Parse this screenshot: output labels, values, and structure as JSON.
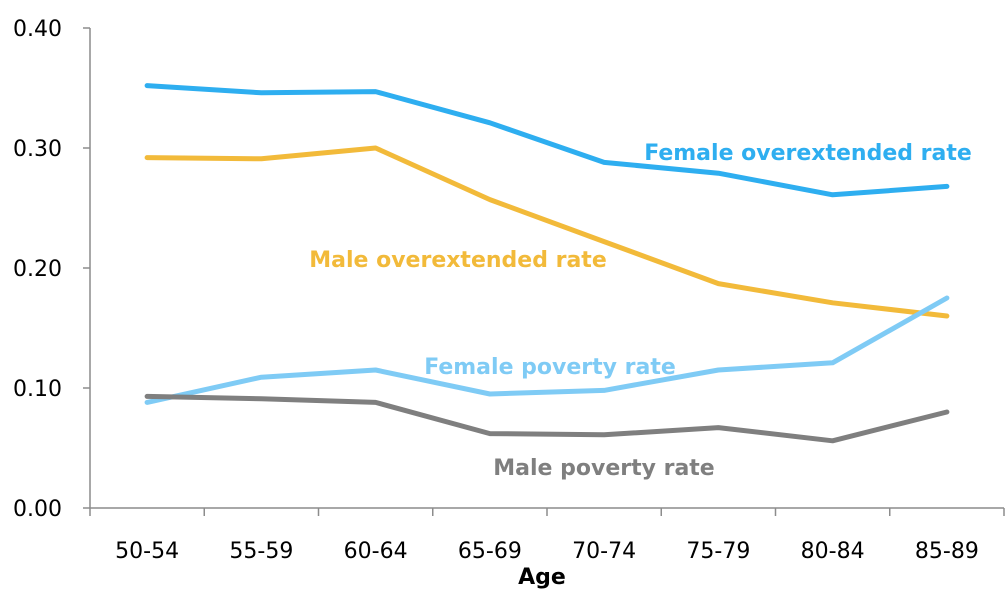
{
  "chart_data": {
    "type": "line",
    "title": "",
    "xlabel": "Age",
    "ylabel": "",
    "categories": [
      "50-54",
      "55-59",
      "60-64",
      "65-69",
      "70-74",
      "75-79",
      "80-84",
      "85-89"
    ],
    "ylim": [
      0,
      0.4
    ],
    "yticks": [
      "0.00",
      "0.10",
      "0.20",
      "0.30",
      "0.40"
    ],
    "grid": false,
    "legend": "inline labels",
    "series": [
      {
        "name": "Female overextended rate",
        "color": "#2EAEF0",
        "values": [
          0.352,
          0.346,
          0.347,
          0.321,
          0.288,
          0.279,
          0.261,
          0.268
        ]
      },
      {
        "name": "Male overextended rate",
        "color": "#F2BA3A",
        "values": [
          0.292,
          0.291,
          0.3,
          0.257,
          0.222,
          0.187,
          0.171,
          0.16
        ]
      },
      {
        "name": "Female poverty rate",
        "color": "#7FCBF5",
        "values": [
          0.088,
          0.109,
          0.115,
          0.095,
          0.098,
          0.115,
          0.121,
          0.175
        ]
      },
      {
        "name": "Male poverty rate",
        "color": "#7F7F7F",
        "values": [
          0.093,
          0.091,
          0.088,
          0.062,
          0.061,
          0.067,
          0.056,
          0.08
        ]
      }
    ]
  }
}
